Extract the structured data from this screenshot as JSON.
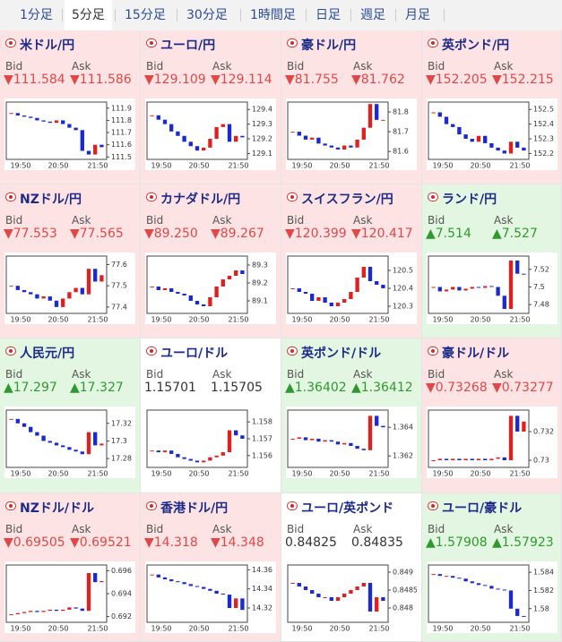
{
  "tabs": [
    "1分足",
    "5分足",
    "15分足",
    "30分足",
    "1時間足",
    "日足",
    "週足",
    "月足"
  ],
  "selected_tab": 1,
  "bid_label": "Bid",
  "ask_label": "Ask",
  "time_labels": [
    "19:50",
    "20:50",
    "21:50"
  ],
  "panels": [
    {
      "name": "米ドル/円",
      "bid": "▼111.584",
      "ask": "▼111.586",
      "trend": "down",
      "chart": {
        "ylim": [
          111.48,
          111.95
        ],
        "yticks": [
          111.9,
          111.8,
          111.7,
          111.6,
          111.5
        ],
        "closes": [
          111.86,
          111.84,
          111.83,
          111.82,
          111.8,
          111.79,
          111.78,
          111.8,
          111.77,
          111.74,
          111.72,
          111.55,
          111.52,
          111.6,
          111.58
        ]
      }
    },
    {
      "name": "ユーロ/円",
      "bid": "▼129.109",
      "ask": "▼129.114",
      "trend": "down",
      "chart": {
        "ylim": [
          129.06,
          129.45
        ],
        "yticks": [
          129.4,
          129.3,
          129.2,
          129.1
        ],
        "closes": [
          129.36,
          129.33,
          129.3,
          129.25,
          129.22,
          129.18,
          129.15,
          129.12,
          129.14,
          129.2,
          129.28,
          129.3,
          129.18,
          129.22,
          129.21
        ]
      }
    },
    {
      "name": "豪ドル/円",
      "bid": "▼81.755",
      "ask": "▼81.762",
      "trend": "down",
      "chart": {
        "ylim": [
          81.56,
          81.85
        ],
        "yticks": [
          81.8,
          81.7,
          81.6
        ],
        "closes": [
          81.7,
          81.68,
          81.66,
          81.67,
          81.64,
          81.63,
          81.62,
          81.61,
          81.63,
          81.62,
          81.66,
          81.72,
          81.84,
          81.76,
          81.76
        ]
      }
    },
    {
      "name": "英ポンド/円",
      "bid": "▼152.205",
      "ask": "▼152.215",
      "trend": "down",
      "chart": {
        "ylim": [
          152.16,
          152.55
        ],
        "yticks": [
          152.5,
          152.4,
          152.3,
          152.2
        ],
        "closes": [
          152.48,
          152.45,
          152.4,
          152.38,
          152.33,
          152.3,
          152.28,
          152.32,
          152.27,
          152.24,
          152.22,
          152.2,
          152.28,
          152.24,
          152.22
        ]
      }
    },
    {
      "name": "NZドル/円",
      "bid": "▼77.553",
      "ask": "▼77.565",
      "trend": "down",
      "chart": {
        "ylim": [
          77.37,
          77.64
        ],
        "yticks": [
          77.6,
          77.5,
          77.4
        ],
        "closes": [
          77.5,
          77.48,
          77.47,
          77.46,
          77.44,
          77.45,
          77.43,
          77.4,
          77.44,
          77.47,
          77.49,
          77.46,
          77.58,
          77.52,
          77.55
        ]
      }
    },
    {
      "name": "カナダドル/円",
      "bid": "▼89.250",
      "ask": "▼89.267",
      "trend": "down",
      "chart": {
        "ylim": [
          89.03,
          89.35
        ],
        "yticks": [
          89.3,
          89.2,
          89.1
        ],
        "closes": [
          89.18,
          89.16,
          89.17,
          89.15,
          89.14,
          89.13,
          89.1,
          89.08,
          89.07,
          89.12,
          89.18,
          89.22,
          89.24,
          89.27,
          89.25
        ]
      }
    },
    {
      "name": "スイスフラン/円",
      "bid": "▼120.399",
      "ask": "▼120.417",
      "trend": "down",
      "chart": {
        "ylim": [
          120.26,
          120.58
        ],
        "yticks": [
          120.5,
          120.4,
          120.3
        ],
        "closes": [
          120.4,
          120.38,
          120.37,
          120.33,
          120.35,
          120.32,
          120.3,
          120.32,
          120.34,
          120.38,
          120.46,
          120.52,
          120.44,
          120.42,
          120.4
        ]
      }
    },
    {
      "name": "ランド/円",
      "bid": "▲7.514",
      "ask": "▲7.527",
      "trend": "up",
      "chart": {
        "ylim": [
          7.47,
          7.535
        ],
        "yticks": [
          7.52,
          7.5,
          7.48
        ],
        "closes": [
          7.5,
          7.495,
          7.497,
          7.5,
          7.496,
          7.498,
          7.5,
          7.499,
          7.501,
          7.5,
          7.49,
          7.475,
          7.53,
          7.515,
          7.514
        ]
      }
    },
    {
      "name": "人民元/円",
      "bid": "▲17.297",
      "ask": "▲17.327",
      "trend": "up",
      "chart": {
        "ylim": [
          17.27,
          17.335
        ],
        "yticks": [
          17.32,
          17.3,
          17.28
        ],
        "closes": [
          17.325,
          17.32,
          17.316,
          17.31,
          17.306,
          17.3,
          17.298,
          17.295,
          17.293,
          17.29,
          17.288,
          17.285,
          17.31,
          17.295,
          17.297
        ]
      }
    },
    {
      "name": "ユーロ/ドル",
      "bid": "1.15701",
      "ask": "1.15705",
      "trend": "flat",
      "chart": {
        "ylim": [
          1.1553,
          1.1587
        ],
        "yticks": [
          1.158,
          1.157,
          1.156
        ],
        "closes": [
          1.1563,
          1.1562,
          1.1563,
          1.1561,
          1.1559,
          1.1558,
          1.1557,
          1.1556,
          1.1557,
          1.1559,
          1.156,
          1.1562,
          1.1575,
          1.1572,
          1.157
        ]
      }
    },
    {
      "name": "英ポンド/ドル",
      "bid": "▲1.36402",
      "ask": "▲1.36412",
      "trend": "up",
      "chart": {
        "ylim": [
          1.3612,
          1.3652
        ],
        "yticks": [
          1.364,
          1.362
        ],
        "closes": [
          1.3632,
          1.3633,
          1.3631,
          1.3632,
          1.363,
          1.3631,
          1.363,
          1.3628,
          1.3629,
          1.3627,
          1.3625,
          1.3624,
          1.3648,
          1.3641,
          1.364
        ]
      }
    },
    {
      "name": "豪ドル/ドル",
      "bid": "▼0.73268",
      "ask": "▼0.73277",
      "trend": "down",
      "chart": {
        "ylim": [
          0.7295,
          0.7335
        ],
        "yticks": [
          0.732,
          0.73
        ],
        "closes": [
          0.73,
          0.7301,
          0.73,
          0.7301,
          0.73,
          0.7301,
          0.73,
          0.7301,
          0.73,
          0.7301,
          0.7302,
          0.73,
          0.7331,
          0.732,
          0.7327
        ]
      }
    },
    {
      "name": "NZドル/ドル",
      "bid": "▼0.69505",
      "ask": "▼0.69521",
      "trend": "down",
      "chart": {
        "ylim": [
          0.6915,
          0.6965
        ],
        "yticks": [
          0.696,
          0.694,
          0.692
        ],
        "closes": [
          0.6922,
          0.6923,
          0.6924,
          0.6925,
          0.6924,
          0.6925,
          0.6926,
          0.6925,
          0.6926,
          0.6928,
          0.6927,
          0.6925,
          0.6958,
          0.695,
          0.6951
        ]
      }
    },
    {
      "name": "香港ドル/円",
      "bid": "▼14.318",
      "ask": "▼14.348",
      "trend": "down",
      "chart": {
        "ylim": [
          14.305,
          14.365
        ],
        "yticks": [
          14.36,
          14.34,
          14.32
        ],
        "closes": [
          14.355,
          14.352,
          14.35,
          14.348,
          14.347,
          14.345,
          14.343,
          14.342,
          14.34,
          14.338,
          14.335,
          14.334,
          14.32,
          14.33,
          14.318
        ]
      }
    },
    {
      "name": "ユーロ/英ポンド",
      "bid": "0.84825",
      "ask": "0.84835",
      "trend": "flat",
      "chart": {
        "ylim": [
          0.8476,
          0.8492
        ],
        "yticks": [
          0.849,
          0.8485,
          0.848
        ],
        "closes": [
          0.8487,
          0.8486,
          0.8485,
          0.8484,
          0.8483,
          0.8483,
          0.8482,
          0.8483,
          0.8484,
          0.8485,
          0.8486,
          0.8487,
          0.8479,
          0.8483,
          0.8482
        ]
      }
    },
    {
      "name": "ユーロ/豪ドル",
      "bid": "▲1.57908",
      "ask": "▲1.57923",
      "trend": "up",
      "chart": {
        "ylim": [
          1.5785,
          1.5848
        ],
        "yticks": [
          1.584,
          1.582,
          1.58
        ],
        "closes": [
          1.5838,
          1.5836,
          1.5836,
          1.5834,
          1.5833,
          1.583,
          1.5828,
          1.5826,
          1.5825,
          1.5822,
          1.5821,
          1.582,
          1.58,
          1.5792,
          1.5791
        ]
      }
    }
  ]
}
